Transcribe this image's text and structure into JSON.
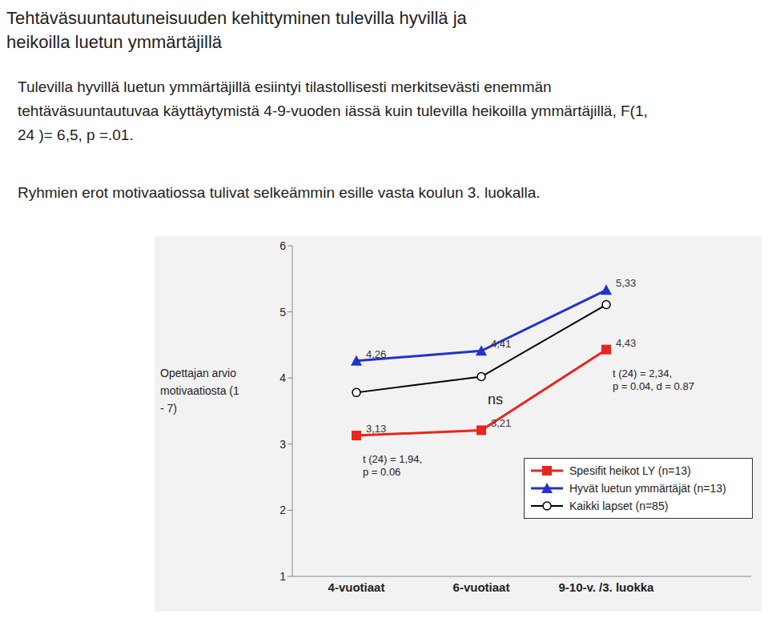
{
  "chart_data": {
    "type": "line",
    "title": "Tehtäväsuuntautuneisuuden kehittyminen tulevilla hyvillä ja heikoilla luetun ymmärtäjillä",
    "subtitle": [
      "Tulevilla hyvillä luetun ymmärtäjillä esiintyi tilastollisesti merkitsevästi enemmän tehtäväsuuntautuvaa käyttäytymistä 4-9-vuoden iässä kuin tulevilla heikoilla ymmärtäjillä, F(1, 24 )= 6,5, p =.01.",
      "Ryhmien erot motivaatiossa tulivat selkeämmin esille vasta koulun 3. luokalla."
    ],
    "y_label": "Opettajan arvio motivaatiosta (1 - 7)",
    "categories": [
      "4-vuotiaat",
      "6-vuotiaat",
      "9-10-v. /3. luokka"
    ],
    "series": [
      {
        "name": "Spesifit heikot LY (n=13)",
        "color": "#e8251f",
        "marker": "square",
        "line_style": "solid",
        "values": [
          3.13,
          3.21,
          4.43
        ],
        "value_labels": [
          "3,13",
          "3,21",
          "4,43"
        ]
      },
      {
        "name": "Hyvät luetun ymmärtäjät (n=13)",
        "color": "#2233cc",
        "marker": "triangle",
        "line_style": "solid",
        "values": [
          4.26,
          4.41,
          5.33
        ],
        "value_labels": [
          "4,26",
          "4,41",
          "5,33"
        ]
      },
      {
        "name": "Kaikki lapset (n=85)",
        "color": "#000000",
        "marker": "circle",
        "line_style": "solid",
        "values": [
          3.78,
          4.02,
          5.11
        ]
      }
    ],
    "annotations": [
      {
        "category": "4-vuotiaat",
        "series": "Spesifit heikot LY (n=13)",
        "text": [
          "t (24) = 1,94,",
          "p = 0.06"
        ]
      },
      {
        "category": "6-vuotiaat",
        "series": "Kaikki lapset (n=85)",
        "text": [
          "ns"
        ]
      },
      {
        "category": "9-10-v. /3. luokka",
        "series": "Spesifit heikot LY (n=13)",
        "text": [
          "t (24) = 2,34,",
          "p = 0.04, d = 0.87"
        ]
      }
    ],
    "ylim": [
      1,
      6
    ],
    "yticks": [
      1,
      2,
      3,
      4,
      5,
      6
    ],
    "grid": false,
    "legend": "lower right"
  }
}
